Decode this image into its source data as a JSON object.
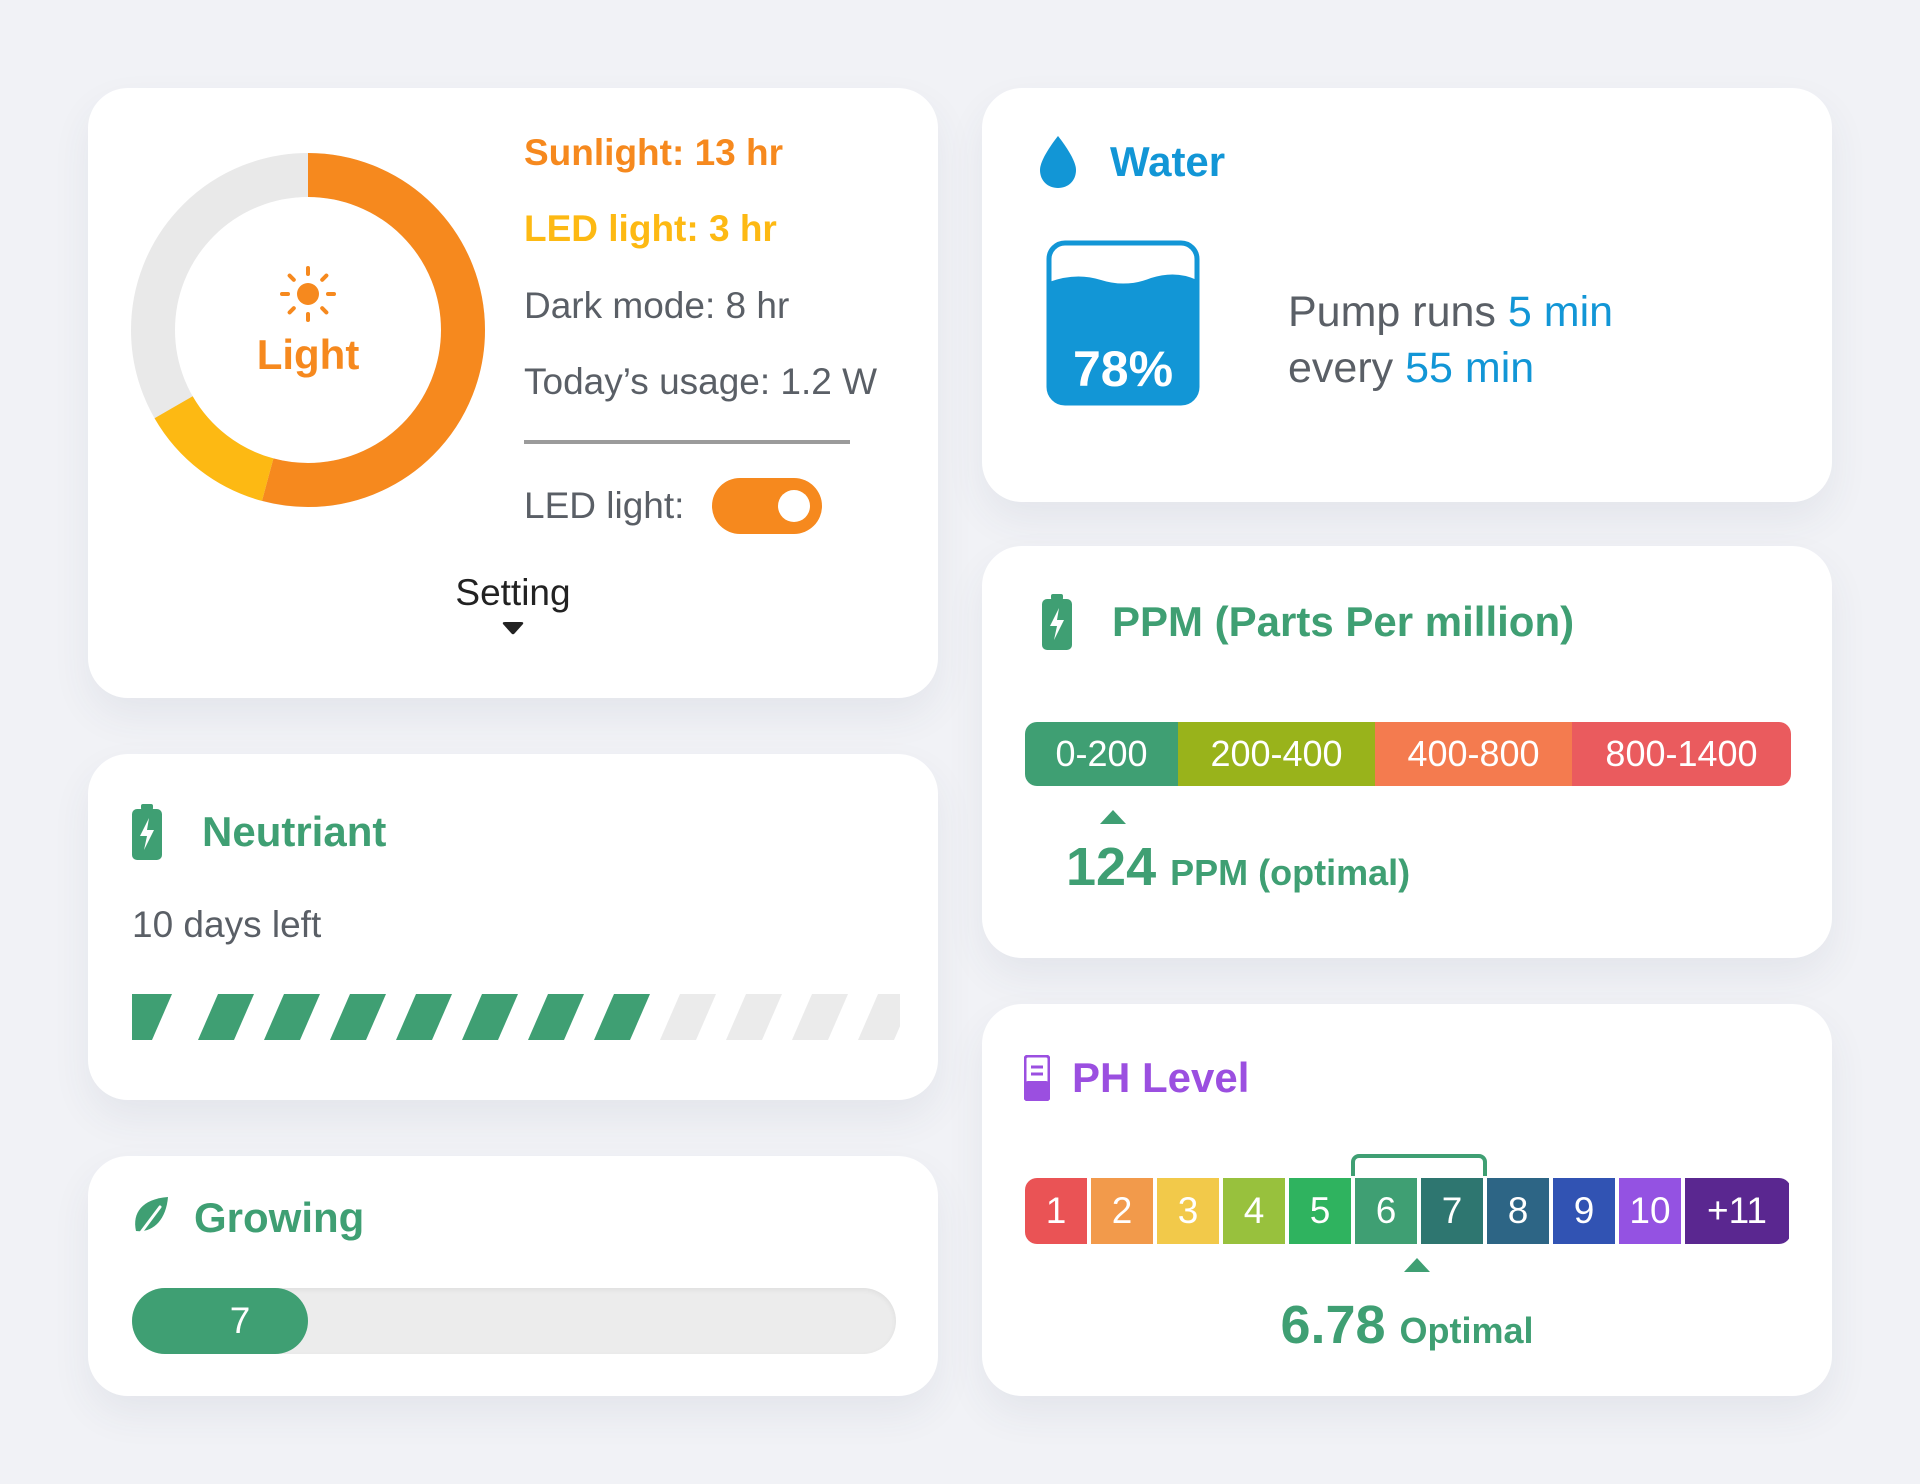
{
  "colors": {
    "orange": "#f6891e",
    "yellow": "#fdb913",
    "green": "#3f9f73",
    "blue": "#1296d6",
    "purple": "#9b4fe0"
  },
  "light": {
    "title": "Light",
    "icon": "sun-icon",
    "sunlight": "Sunlight: 13 hr",
    "led_light": "LED light: 3 hr",
    "dark_mode": "Dark mode: 8 hr",
    "usage": "Today’s usage: 1.2 W",
    "led_toggle_label": "LED light:",
    "led_toggle_on": true,
    "setting_label": "Setting",
    "hours": {
      "sunlight": 13,
      "led": 3,
      "dark": 8
    }
  },
  "neutriant": {
    "title": "Neutriant",
    "icon": "battery-icon",
    "days_left": "10 days left",
    "segments_total": 12,
    "segments_filled": 8
  },
  "growing": {
    "title": "Growing",
    "icon": "leaf-icon",
    "value": "7",
    "progress_fraction": 0.23
  },
  "water": {
    "title": "Water",
    "icon": "water-drop-icon",
    "level": "78%",
    "level_fraction": 0.78,
    "pump_prefix": "Pump runs",
    "pump_duration": "5 min",
    "pump_every": "every",
    "pump_interval": "55 min"
  },
  "ppm": {
    "title": "PPM (Parts Per million)",
    "icon": "battery-icon",
    "ranges": [
      {
        "label": "0-200",
        "color": "#3f9f73"
      },
      {
        "label": "200-400",
        "color": "#99b31b"
      },
      {
        "label": "400-800",
        "color": "#f47b4f"
      },
      {
        "label": "800-1400",
        "color": "#ea5b5e"
      }
    ],
    "value": "124",
    "unit": "PPM (optimal)"
  },
  "ph": {
    "title": "PH Level",
    "icon": "ph-meter-icon",
    "scale": [
      {
        "label": "1",
        "color": "#ea5355"
      },
      {
        "label": "2",
        "color": "#f29a4b"
      },
      {
        "label": "3",
        "color": "#f2c94a"
      },
      {
        "label": "4",
        "color": "#98c13d"
      },
      {
        "label": "5",
        "color": "#2fb35f"
      },
      {
        "label": "6",
        "color": "#3f9f73"
      },
      {
        "label": "7",
        "color": "#2e7670"
      },
      {
        "label": "8",
        "color": "#2d6585"
      },
      {
        "label": "9",
        "color": "#3153b3"
      },
      {
        "label": "10",
        "color": "#9452e2"
      },
      {
        "label": "+11",
        "color": "#5a2790"
      }
    ],
    "value": "6.78",
    "status": "Optimal"
  }
}
